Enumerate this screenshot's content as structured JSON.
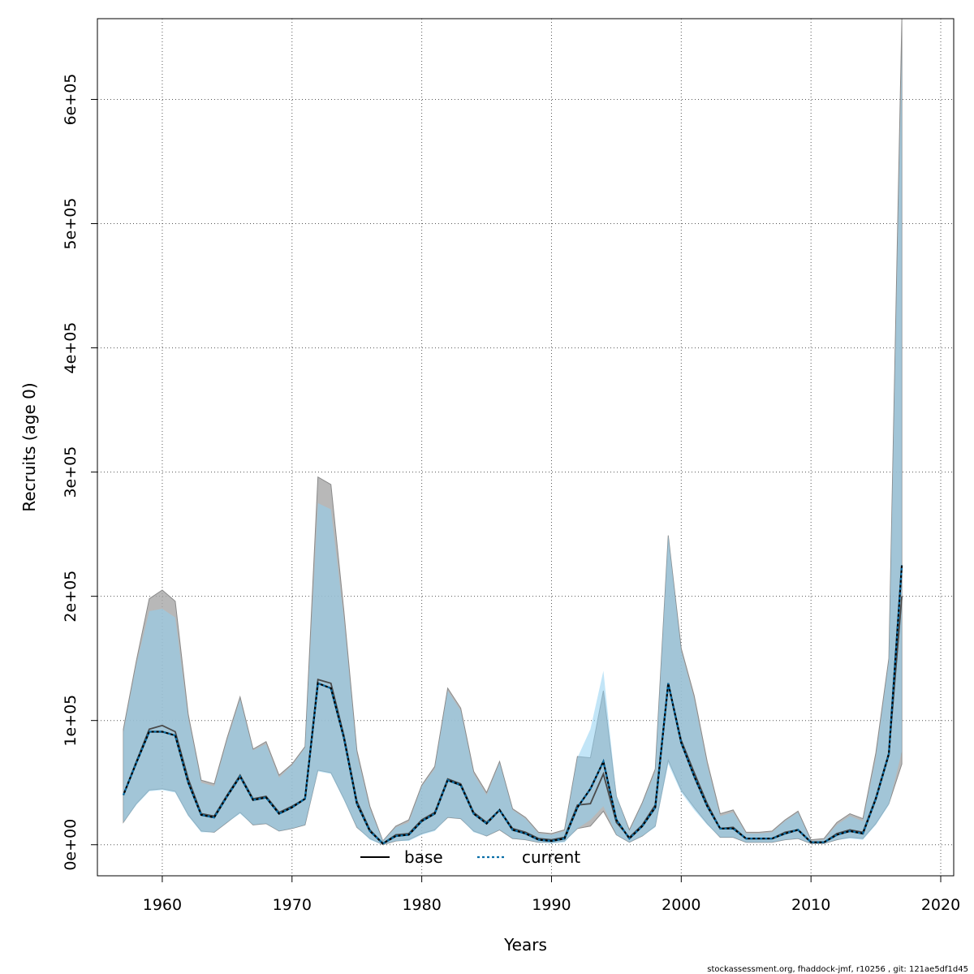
{
  "chart_data": {
    "type": "area",
    "title": "",
    "xlabel": "Years",
    "ylabel": "Recruits (age 0)",
    "xlim": [
      1955,
      2021
    ],
    "ylim": [
      -25000,
      665000
    ],
    "grid": true,
    "legend": {
      "placement": "bottom-center"
    },
    "x_ticks": [
      1960,
      1970,
      1980,
      1990,
      2000,
      2010,
      2020
    ],
    "x_tick_labels": [
      "1960",
      "1970",
      "1980",
      "1990",
      "2000",
      "2010",
      "2020"
    ],
    "y_ticks": [
      0,
      100000,
      200000,
      300000,
      400000,
      500000,
      600000
    ],
    "y_tick_labels": [
      "0e+00",
      "1e+05",
      "2e+05",
      "3e+05",
      "4e+05",
      "5e+05",
      "6e+05"
    ],
    "x": [
      1957,
      1958,
      1959,
      1960,
      1961,
      1962,
      1963,
      1964,
      1965,
      1966,
      1967,
      1968,
      1969,
      1970,
      1971,
      1972,
      1973,
      1974,
      1975,
      1976,
      1977,
      1978,
      1979,
      1980,
      1981,
      1982,
      1983,
      1984,
      1985,
      1986,
      1987,
      1988,
      1989,
      1990,
      1991,
      1992,
      1993,
      1994,
      1995,
      1996,
      1997,
      1998,
      1999,
      2000,
      2001,
      2002,
      2003,
      2004,
      2005,
      2006,
      2007,
      2008,
      2009,
      2010,
      2011,
      2012,
      2013,
      2014,
      2015,
      2016,
      2017
    ],
    "series": [
      {
        "name": "base",
        "color": "#000000",
        "band_color": "#a6a6a6",
        "values": [
          40000,
          67000,
          93000,
          96000,
          91000,
          53000,
          25000,
          23000,
          40000,
          56000,
          37000,
          39000,
          26000,
          31000,
          37000,
          133000,
          130000,
          88000,
          35000,
          12000,
          1000,
          8000,
          9000,
          20000,
          26000,
          53000,
          49000,
          26000,
          18000,
          28000,
          13000,
          10000,
          5000,
          4000,
          6000,
          32000,
          33000,
          57000,
          18000,
          6000,
          16000,
          32000,
          130000,
          84000,
          58000,
          33000,
          13000,
          14000,
          5000,
          5000,
          5000,
          10000,
          12000,
          2000,
          2000,
          9000,
          12000,
          10000,
          38000,
          74000,
          200000
        ],
        "lower": [
          18000,
          33000,
          44000,
          45000,
          43000,
          24000,
          11000,
          10000,
          18000,
          26000,
          16000,
          17000,
          11000,
          13000,
          16000,
          60000,
          58000,
          37000,
          14000,
          5000,
          0,
          3000,
          4000,
          9000,
          12000,
          22000,
          21000,
          11000,
          7000,
          12000,
          5000,
          4000,
          2000,
          2000,
          3000,
          13000,
          15000,
          27000,
          8000,
          2000,
          7000,
          15000,
          68000,
          44000,
          30000,
          17000,
          6000,
          6000,
          2000,
          2000,
          2000,
          4000,
          5000,
          1000,
          1000,
          4000,
          6000,
          5000,
          17000,
          33000,
          65000
        ],
        "upper": [
          93000,
          148000,
          198000,
          205000,
          196000,
          105000,
          52000,
          49000,
          86000,
          119000,
          77000,
          83000,
          56000,
          65000,
          79000,
          296000,
          290000,
          188000,
          76000,
          31000,
          3000,
          15000,
          20000,
          48000,
          63000,
          126000,
          110000,
          59000,
          42000,
          67000,
          29000,
          22000,
          10000,
          9000,
          12000,
          71000,
          70000,
          124000,
          39000,
          12000,
          34000,
          61000,
          249000,
          158000,
          120000,
          67000,
          25000,
          28000,
          10000,
          10000,
          11000,
          20000,
          27000,
          4000,
          5000,
          18000,
          25000,
          21000,
          74000,
          150000,
          665000
        ]
      },
      {
        "name": "current",
        "color": "#0a6fa8",
        "band_color": "#8fd0f0",
        "values": [
          40000,
          66000,
          91000,
          91000,
          88000,
          50000,
          24000,
          22000,
          39000,
          55000,
          36000,
          38000,
          25000,
          30000,
          37000,
          130000,
          126000,
          86000,
          33000,
          11000,
          1000,
          7000,
          8000,
          19000,
          25000,
          52000,
          48000,
          25000,
          17000,
          28000,
          12000,
          9000,
          4000,
          3000,
          5000,
          30000,
          45000,
          67000,
          20000,
          5000,
          15000,
          30000,
          130000,
          82000,
          55000,
          31000,
          13000,
          13000,
          5000,
          5000,
          5000,
          9000,
          12000,
          2000,
          2000,
          8000,
          11000,
          9000,
          37000,
          73000,
          225000
        ],
        "lower": [
          18000,
          32000,
          43000,
          44000,
          42000,
          23000,
          10000,
          10000,
          18000,
          25000,
          16000,
          17000,
          11000,
          13000,
          16000,
          59000,
          57000,
          36000,
          14000,
          4000,
          0,
          3000,
          3000,
          8000,
          11000,
          22000,
          21000,
          10000,
          7000,
          12000,
          5000,
          4000,
          2000,
          1000,
          2000,
          13000,
          20000,
          31000,
          8000,
          2000,
          7000,
          14000,
          65000,
          42000,
          28000,
          16000,
          6000,
          6000,
          2000,
          2000,
          2000,
          4000,
          5000,
          1000,
          1000,
          4000,
          5000,
          4000,
          16000,
          32000,
          75000
        ],
        "upper": [
          91000,
          145000,
          188000,
          190000,
          183000,
          102000,
          50000,
          47000,
          84000,
          117000,
          76000,
          81000,
          54000,
          64000,
          78000,
          275000,
          270000,
          182000,
          73000,
          29000,
          3000,
          14000,
          18000,
          47000,
          61000,
          124000,
          108000,
          57000,
          40000,
          66000,
          28000,
          21000,
          9000,
          8000,
          11000,
          70000,
          93000,
          140000,
          40000,
          11000,
          33000,
          59000,
          249000,
          156000,
          117000,
          64000,
          23000,
          26000,
          9000,
          9000,
          10000,
          19000,
          26000,
          3000,
          4000,
          16000,
          23000,
          19000,
          70000,
          148000,
          640000
        ]
      }
    ]
  },
  "footer": "stockassessment.org, fhaddock-jmf, r10256 , git: 121ae5df1d45"
}
